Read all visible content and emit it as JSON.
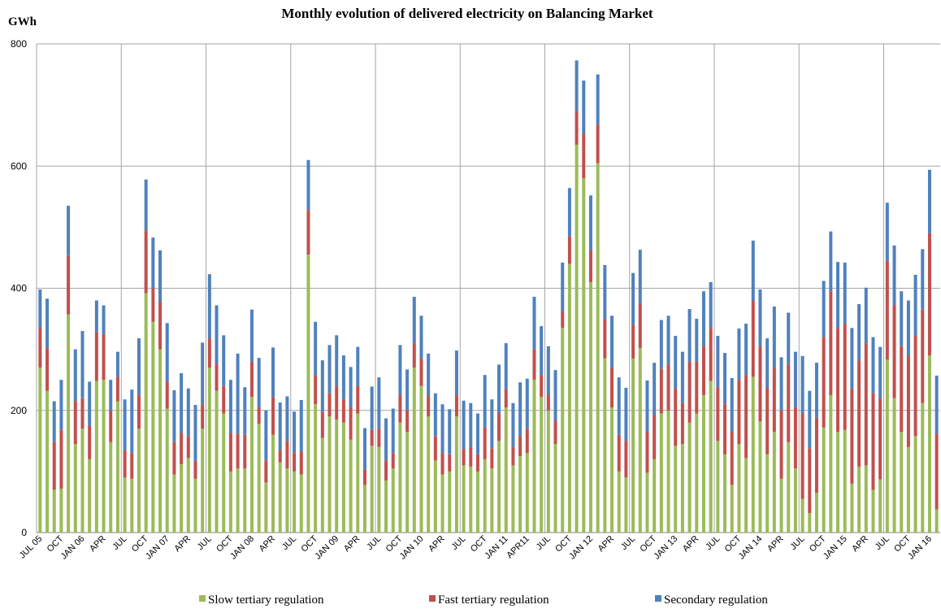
{
  "chart_data": {
    "type": "stacked_bar",
    "title": "Monthly evolution of delivered electricity on Balancing Market",
    "y_label": "GWh",
    "categories": [
      "JUL 05",
      null,
      null,
      "OCT",
      null,
      null,
      "JAN 06",
      null,
      null,
      "APR",
      null,
      null,
      "JUL",
      null,
      null,
      "OCT",
      null,
      null,
      "JAN 07",
      null,
      null,
      "APR",
      null,
      null,
      "JUL",
      null,
      null,
      "OCT",
      null,
      null,
      "JAN 08",
      null,
      null,
      "APR",
      null,
      null,
      "JUL",
      null,
      null,
      "OCT",
      null,
      null,
      "JAN 09",
      null,
      null,
      "APR",
      null,
      null,
      "JUL",
      null,
      null,
      "OCT",
      null,
      null,
      "JAN 10",
      null,
      null,
      "APR",
      null,
      null,
      "JUL",
      null,
      null,
      "OCT",
      null,
      null,
      "JAN 11",
      null,
      null,
      "APR11",
      null,
      null,
      "JUL",
      null,
      null,
      "OCT",
      null,
      null,
      "JAN 12",
      null,
      null,
      "APR",
      null,
      null,
      "JUL",
      null,
      null,
      "OCT",
      null,
      null,
      "JAN 13",
      null,
      null,
      "APR",
      null,
      null,
      "JUL",
      null,
      null,
      "OCT",
      null,
      null,
      "JAN 14",
      null,
      null,
      "APR",
      null,
      null,
      "JUL",
      null,
      null,
      "OCT",
      null,
      null,
      "JAN 15",
      null,
      null,
      "APR",
      null,
      null,
      "JUL",
      null,
      null,
      "OCT",
      null,
      null,
      "JAN 16",
      null
    ],
    "series": [
      {
        "name": "Slow tertiary regulation",
        "color": "#9bbb59",
        "values": [
          270,
          232,
          70,
          72,
          357,
          145,
          170,
          120,
          248,
          250,
          148,
          215,
          90,
          88,
          170,
          392,
          345,
          300,
          203,
          95,
          112,
          122,
          88,
          170,
          270,
          232,
          195,
          100,
          105,
          105,
          222,
          178,
          82,
          160,
          115,
          105,
          100,
          95,
          455,
          210,
          155,
          190,
          185,
          180,
          152,
          195,
          78,
          142,
          140,
          85,
          105,
          180,
          165,
          270,
          240,
          190,
          118,
          95,
          100,
          190,
          110,
          108,
          100,
          120,
          105,
          150,
          205,
          110,
          125,
          130,
          250,
          222,
          200,
          145,
          335,
          440,
          635,
          580,
          410,
          605,
          285,
          205,
          100,
          90,
          285,
          302,
          98,
          120,
          195,
          200,
          142,
          145,
          180,
          195,
          225,
          248,
          150,
          128,
          78,
          145,
          122,
          255,
          182,
          128,
          165,
          88,
          148,
          105,
          55,
          32,
          65,
          172,
          225,
          165,
          168,
          80,
          108,
          110,
          70,
          87,
          283,
          220,
          165,
          140,
          158,
          212,
          290,
          38
        ]
      },
      {
        "name": "Fast tertiary regulation",
        "color": "#c0504d",
        "values": [
          65,
          70,
          78,
          96,
          96,
          70,
          50,
          55,
          80,
          75,
          52,
          40,
          45,
          42,
          55,
          103,
          55,
          78,
          44,
          53,
          51,
          36,
          29,
          40,
          48,
          44,
          45,
          63,
          57,
          55,
          58,
          27,
          36,
          62,
          20,
          45,
          30,
          38,
          73,
          48,
          43,
          38,
          55,
          38,
          53,
          45,
          25,
          26,
          30,
          33,
          25,
          45,
          35,
          40,
          45,
          35,
          40,
          35,
          28,
          35,
          27,
          32,
          28,
          52,
          33,
          45,
          30,
          30,
          33,
          40,
          50,
          36,
          25,
          38,
          27,
          45,
          55,
          73,
          52,
          63,
          65,
          65,
          60,
          60,
          55,
          73,
          67,
          73,
          73,
          75,
          93,
          67,
          100,
          85,
          80,
          87,
          88,
          82,
          87,
          105,
          136,
          125,
          123,
          109,
          105,
          112,
          127,
          100,
          140,
          106,
          123,
          148,
          170,
          170,
          174,
          155,
          174,
          200,
          158,
          133,
          162,
          152,
          140,
          150,
          164,
          153,
          200,
          124
        ]
      },
      {
        "name": "Secondary regulation",
        "color": "#4f81bd",
        "values": [
          63,
          81,
          67,
          82,
          82,
          85,
          110,
          72,
          52,
          47,
          50,
          41,
          83,
          104,
          93,
          83,
          83,
          84,
          96,
          85,
          98,
          78,
          92,
          101,
          105,
          96,
          83,
          87,
          131,
          78,
          85,
          81,
          82,
          81,
          78,
          73,
          68,
          84,
          82,
          87,
          84,
          79,
          83,
          72,
          66,
          64,
          68,
          71,
          84,
          69,
          73,
          82,
          67,
          76,
          70,
          68,
          70,
          80,
          74,
          73,
          79,
          72,
          67,
          86,
          80,
          80,
          75,
          72,
          88,
          82,
          86,
          80,
          80,
          83,
          80,
          79,
          83,
          87,
          90,
          82,
          88,
          85,
          94,
          87,
          85,
          88,
          84,
          85,
          80,
          80,
          87,
          84,
          86,
          70,
          90,
          75,
          84,
          84,
          88,
          84,
          84,
          98,
          93,
          81,
          100,
          87,
          85,
          91,
          94,
          94,
          90,
          92,
          98,
          108,
          100,
          100,
          92,
          91,
          92,
          84,
          95,
          98,
          90,
          90,
          100,
          99,
          104,
          95
        ]
      }
    ],
    "ylim": [
      0,
      800
    ],
    "yticks": [
      0,
      200,
      400,
      600,
      800
    ],
    "grid": true
  }
}
